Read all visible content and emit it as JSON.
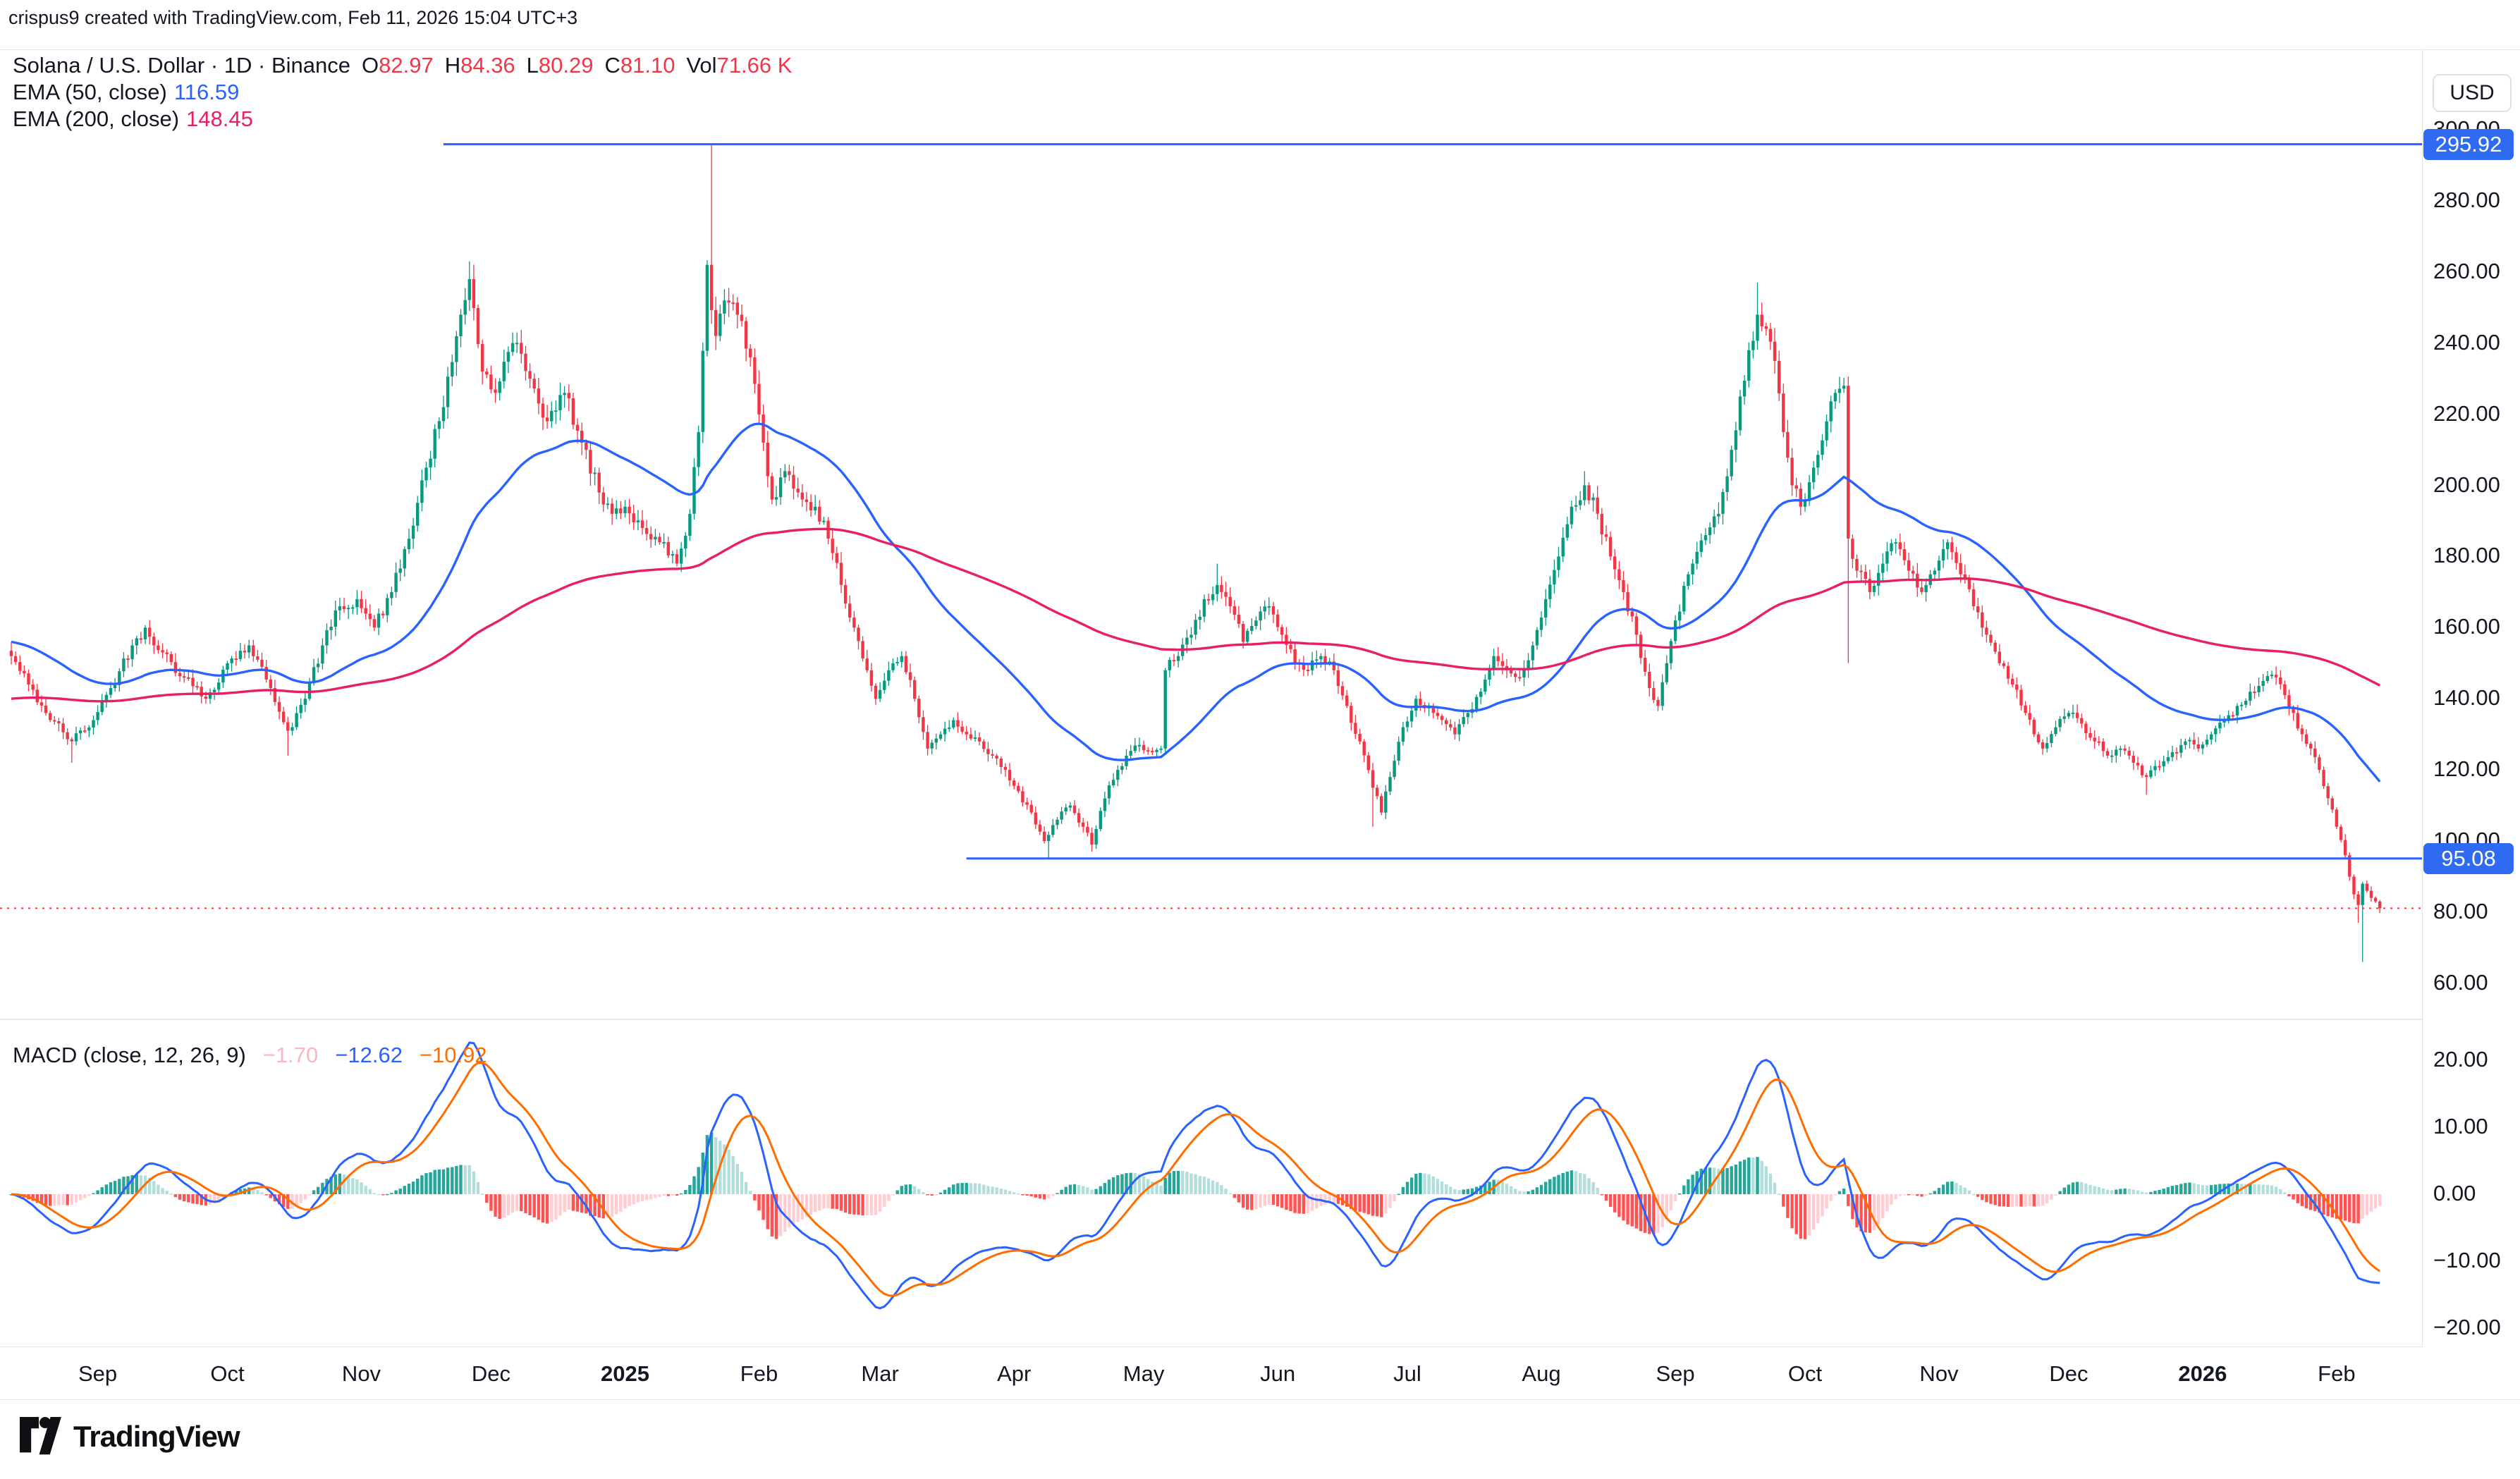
{
  "header": {
    "creator_line": "crispus9 created with TradingView.com, Feb 11, 2026 15:04 UTC+3",
    "symbol_line": "Solana / U.S. Dollar · 1D · Binance",
    "ohlc": [
      {
        "k": "O",
        "v": "82.97"
      },
      {
        "k": "H",
        "v": "84.36"
      },
      {
        "k": "L",
        "v": "80.29"
      },
      {
        "k": "C",
        "v": "81.10"
      }
    ],
    "vol_label": "Vol",
    "vol_value": "71.66 K"
  },
  "indicators": {
    "ema50_label": "EMA (50, close)",
    "ema50_value": "116.59",
    "ema200_label": "EMA (200, close)",
    "ema200_value": "148.45",
    "macd_label": "MACD (close, 12, 26, 9)",
    "macd_hist_value": "−1.70",
    "macd_value": "−12.62",
    "macd_signal_value": "−10.92"
  },
  "axis": {
    "currency": "USD",
    "price_ticks": [
      300,
      280,
      260,
      240,
      220,
      200,
      180,
      160,
      140,
      120,
      100,
      80,
      60
    ],
    "macd_ticks": [
      20,
      10,
      0,
      -10,
      -20
    ],
    "badges": [
      {
        "text": "295.92",
        "value": 295.92
      },
      {
        "text": "95.08",
        "value": 95.08
      }
    ]
  },
  "footer": {
    "brand": "TradingView"
  },
  "colors": {
    "up": "#089981",
    "down": "#F23645",
    "ema50": "#2962FF",
    "ema200": "#E91E63",
    "macd_line": "#2962FF",
    "signal_line": "#FF6D00",
    "hist_grow_above": "#26A69A",
    "hist_fall_above": "#B2DFDB",
    "hist_fall_below": "#FF5252",
    "hist_grow_below": "#FFCDD2",
    "ray": "#2962FF",
    "last_price_line": "#F23645",
    "axis_text": "#131722"
  },
  "chart_data": {
    "type": "candlestick",
    "title": "Solana / U.S. Dollar, 1D, Binance",
    "ylabel": "USD",
    "ylim_price_pane": [
      46,
      317
    ],
    "ylim_macd_pane": [
      -23,
      26
    ],
    "grid": false,
    "legend_position": "top-left",
    "days_total": 548,
    "last_close": 81.1,
    "ema_periods": [
      50,
      200
    ],
    "ema_seeds": [
      156,
      140
    ],
    "macd_params": [
      12,
      26,
      9
    ],
    "levels": [
      {
        "value": 295.92,
        "from_day": 100
      },
      {
        "value": 95.08,
        "from_day": 221
      }
    ],
    "price_keypoints": [
      [
        0,
        152
      ],
      [
        4,
        144
      ],
      [
        8,
        136
      ],
      [
        14,
        128
      ],
      [
        19,
        134
      ],
      [
        23,
        143
      ],
      [
        28,
        155
      ],
      [
        31,
        160
      ],
      [
        35,
        153
      ],
      [
        40,
        146
      ],
      [
        45,
        140
      ],
      [
        50,
        150
      ],
      [
        55,
        155
      ],
      [
        60,
        143
      ],
      [
        64,
        131
      ],
      [
        68,
        140
      ],
      [
        72,
        155
      ],
      [
        76,
        166
      ],
      [
        80,
        168
      ],
      [
        84,
        160
      ],
      [
        88,
        170
      ],
      [
        92,
        185
      ],
      [
        96,
        205
      ],
      [
        100,
        222
      ],
      [
        104,
        248
      ],
      [
        106,
        258
      ],
      [
        109,
        232
      ],
      [
        112,
        226
      ],
      [
        116,
        240
      ],
      [
        120,
        230
      ],
      [
        124,
        218
      ],
      [
        128,
        226
      ],
      [
        132,
        212
      ],
      [
        136,
        198
      ],
      [
        139,
        192
      ],
      [
        142,
        194
      ],
      [
        146,
        188
      ],
      [
        150,
        184
      ],
      [
        154,
        178
      ],
      [
        157,
        192
      ],
      [
        159,
        215
      ],
      [
        161,
        262
      ],
      [
        163,
        242
      ],
      [
        165,
        252
      ],
      [
        168,
        248
      ],
      [
        171,
        236
      ],
      [
        174,
        212
      ],
      [
        176,
        196
      ],
      [
        179,
        204
      ],
      [
        182,
        198
      ],
      [
        186,
        194
      ],
      [
        189,
        185
      ],
      [
        192,
        172
      ],
      [
        195,
        160
      ],
      [
        198,
        148
      ],
      [
        200,
        140
      ],
      [
        203,
        148
      ],
      [
        206,
        152
      ],
      [
        209,
        140
      ],
      [
        212,
        126
      ],
      [
        215,
        130
      ],
      [
        218,
        134
      ],
      [
        221,
        130
      ],
      [
        224,
        128
      ],
      [
        227,
        124
      ],
      [
        230,
        120
      ],
      [
        233,
        114
      ],
      [
        236,
        108
      ],
      [
        239,
        100
      ],
      [
        242,
        106
      ],
      [
        245,
        110
      ],
      [
        248,
        104
      ],
      [
        250,
        99
      ],
      [
        253,
        112
      ],
      [
        256,
        120
      ],
      [
        258,
        124
      ],
      [
        261,
        127
      ],
      [
        264,
        125
      ],
      [
        266,
        126
      ],
      [
        267,
        148
      ],
      [
        270,
        152
      ],
      [
        273,
        158
      ],
      [
        276,
        168
      ],
      [
        279,
        172
      ],
      [
        282,
        166
      ],
      [
        285,
        156
      ],
      [
        288,
        162
      ],
      [
        291,
        166
      ],
      [
        294,
        158
      ],
      [
        297,
        150
      ],
      [
        300,
        148
      ],
      [
        303,
        152
      ],
      [
        306,
        148
      ],
      [
        309,
        138
      ],
      [
        312,
        128
      ],
      [
        315,
        115
      ],
      [
        317,
        108
      ],
      [
        319,
        118
      ],
      [
        322,
        132
      ],
      [
        325,
        140
      ],
      [
        328,
        138
      ],
      [
        331,
        134
      ],
      [
        334,
        130
      ],
      [
        337,
        136
      ],
      [
        340,
        142
      ],
      [
        343,
        152
      ],
      [
        346,
        148
      ],
      [
        349,
        146
      ],
      [
        352,
        155
      ],
      [
        355,
        168
      ],
      [
        358,
        180
      ],
      [
        361,
        194
      ],
      [
        364,
        200
      ],
      [
        367,
        192
      ],
      [
        370,
        180
      ],
      [
        373,
        170
      ],
      [
        376,
        158
      ],
      [
        379,
        143
      ],
      [
        381,
        138
      ],
      [
        383,
        150
      ],
      [
        385,
        162
      ],
      [
        389,
        178
      ],
      [
        392,
        186
      ],
      [
        395,
        192
      ],
      [
        398,
        210
      ],
      [
        400,
        225
      ],
      [
        402,
        238
      ],
      [
        404,
        248
      ],
      [
        406,
        244
      ],
      [
        408,
        235
      ],
      [
        410,
        215
      ],
      [
        412,
        200
      ],
      [
        414,
        194
      ],
      [
        417,
        205
      ],
      [
        420,
        218
      ],
      [
        422,
        226
      ],
      [
        424,
        228
      ],
      [
        425,
        185
      ],
      [
        427,
        176
      ],
      [
        430,
        170
      ],
      [
        433,
        178
      ],
      [
        436,
        184
      ],
      [
        439,
        176
      ],
      [
        442,
        170
      ],
      [
        445,
        176
      ],
      [
        448,
        184
      ],
      [
        451,
        175
      ],
      [
        454,
        166
      ],
      [
        457,
        158
      ],
      [
        460,
        150
      ],
      [
        463,
        144
      ],
      [
        466,
        136
      ],
      [
        468,
        130
      ],
      [
        470,
        126
      ],
      [
        473,
        132
      ],
      [
        476,
        136
      ],
      [
        479,
        133
      ],
      [
        482,
        128
      ],
      [
        485,
        124
      ],
      [
        488,
        126
      ],
      [
        491,
        122
      ],
      [
        494,
        118
      ],
      [
        497,
        121
      ],
      [
        500,
        125
      ],
      [
        503,
        128
      ],
      [
        506,
        126
      ],
      [
        509,
        130
      ],
      [
        512,
        134
      ],
      [
        515,
        138
      ],
      [
        518,
        142
      ],
      [
        521,
        145
      ],
      [
        524,
        146
      ],
      [
        526,
        141
      ],
      [
        528,
        136
      ],
      [
        530,
        130
      ],
      [
        532,
        126
      ],
      [
        534,
        120
      ],
      [
        536,
        112
      ],
      [
        538,
        104
      ],
      [
        540,
        96
      ],
      [
        541,
        90
      ],
      [
        542,
        85
      ],
      [
        543,
        82
      ],
      [
        544,
        88
      ],
      [
        545,
        86
      ],
      [
        546,
        84
      ],
      [
        547,
        83
      ],
      [
        548,
        81.1
      ]
    ],
    "wick_overrides": [
      [
        14,
        null,
        122
      ],
      [
        64,
        null,
        124
      ],
      [
        106,
        263,
        null
      ],
      [
        162,
        295.92,
        null
      ],
      [
        240,
        null,
        95.1
      ],
      [
        250,
        null,
        97
      ],
      [
        279,
        178,
        null
      ],
      [
        315,
        null,
        104
      ],
      [
        364,
        204,
        null
      ],
      [
        404,
        257,
        null
      ],
      [
        425,
        null,
        150
      ],
      [
        494,
        null,
        113
      ],
      [
        543,
        null,
        77
      ],
      [
        544,
        null,
        66
      ]
    ],
    "time_ticks": [
      {
        "label": "Sep",
        "day": 20
      },
      {
        "label": "Oct",
        "day": 50
      },
      {
        "label": "Nov",
        "day": 81
      },
      {
        "label": "Dec",
        "day": 111
      },
      {
        "label": "2025",
        "day": 142,
        "bold": true
      },
      {
        "label": "Feb",
        "day": 173
      },
      {
        "label": "Mar",
        "day": 201
      },
      {
        "label": "Apr",
        "day": 232
      },
      {
        "label": "May",
        "day": 262
      },
      {
        "label": "Jun",
        "day": 293
      },
      {
        "label": "Jul",
        "day": 323
      },
      {
        "label": "Aug",
        "day": 354
      },
      {
        "label": "Sep",
        "day": 385
      },
      {
        "label": "Oct",
        "day": 415
      },
      {
        "label": "Nov",
        "day": 446
      },
      {
        "label": "Dec",
        "day": 476
      },
      {
        "label": "2026",
        "day": 507,
        "bold": true
      },
      {
        "label": "Feb",
        "day": 538
      }
    ]
  }
}
